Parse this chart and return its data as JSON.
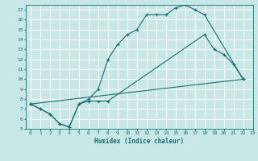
{
  "xlabel": "Humidex (Indice chaleur)",
  "xlim": [
    -0.5,
    23
  ],
  "ylim": [
    5,
    17.5
  ],
  "xticks": [
    0,
    1,
    2,
    3,
    4,
    5,
    6,
    7,
    8,
    9,
    10,
    11,
    12,
    13,
    14,
    15,
    16,
    17,
    18,
    19,
    20,
    21,
    22,
    23
  ],
  "yticks": [
    5,
    6,
    7,
    8,
    9,
    10,
    11,
    12,
    13,
    14,
    15,
    16,
    17
  ],
  "background_color": "#c8e8e8",
  "grid_color": "#b0d8d8",
  "line_color": "#1a6b6b",
  "curve1_x": [
    0,
    1,
    2,
    3,
    4,
    5,
    6,
    7,
    8,
    9,
    10,
    11,
    12,
    13,
    14,
    15,
    16,
    17,
    18,
    22
  ],
  "curve1_y": [
    7.5,
    7.0,
    6.5,
    5.5,
    5.2,
    7.5,
    8.0,
    9.0,
    12.0,
    13.5,
    14.5,
    15.0,
    16.5,
    16.5,
    16.5,
    17.2,
    17.5,
    17.0,
    16.5,
    10.0
  ],
  "curve2_x": [
    0,
    22
  ],
  "curve2_y": [
    7.5,
    10.0
  ],
  "curve3_x": [
    0,
    1,
    2,
    3,
    4,
    5,
    6,
    7,
    8,
    18,
    19,
    20,
    21,
    22
  ],
  "curve3_y": [
    7.5,
    7.0,
    6.5,
    5.5,
    5.2,
    7.5,
    7.8,
    7.8,
    7.8,
    14.5,
    13.0,
    12.5,
    11.5,
    10.0
  ]
}
